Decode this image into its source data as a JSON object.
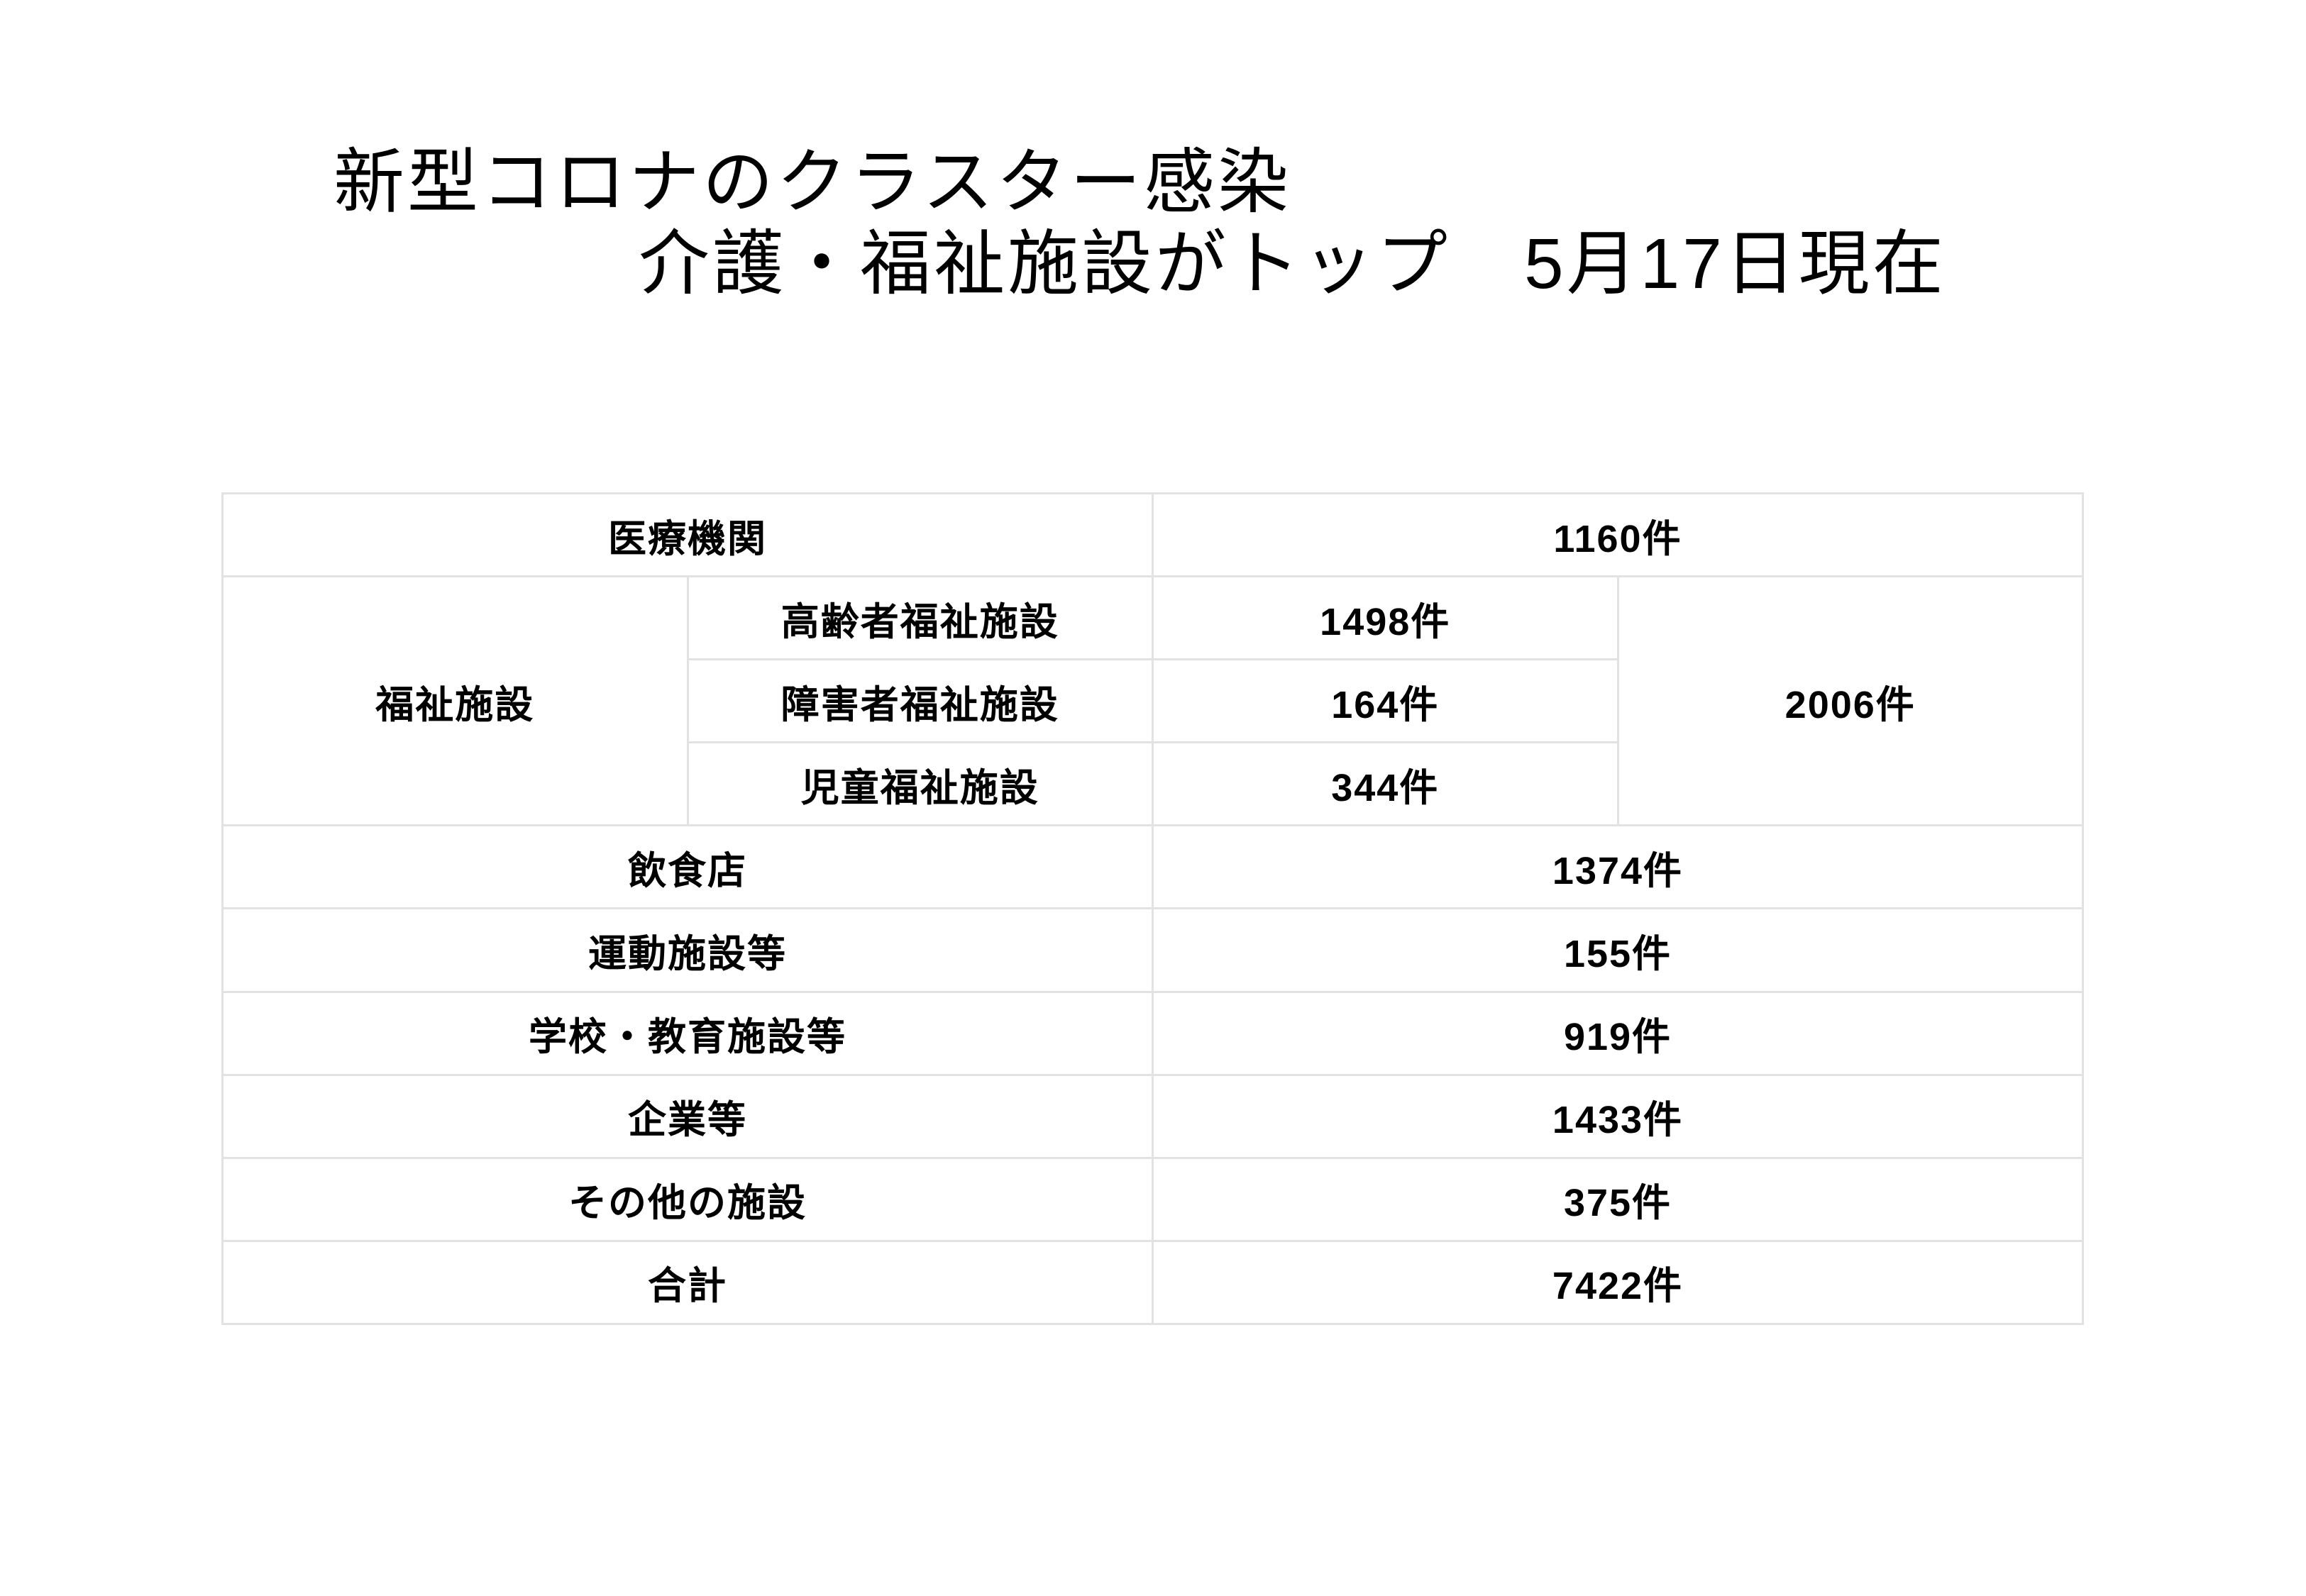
{
  "page": {
    "background": "#ffffff",
    "text_color": "#000000",
    "table_border_color": "#e2e2e2"
  },
  "title": {
    "line1": "新型コロナのクラスター感染",
    "line2": "介護・福祉施設がトップ　5月17日現在"
  },
  "table": {
    "row_medical": {
      "label": "医療機関",
      "value": "1160件"
    },
    "welfare_group": {
      "label": "福祉施設",
      "total": "2006件",
      "subrows": [
        {
          "label": "高齢者福祉施設",
          "value": "1498件"
        },
        {
          "label": "障害者福祉施設",
          "value": "164件"
        },
        {
          "label": "児童福祉施設",
          "value": "344件"
        }
      ]
    },
    "simple_rows": [
      {
        "label": "飲食店",
        "value": "1374件"
      },
      {
        "label": "運動施設等",
        "value": "155件"
      },
      {
        "label": "学校・教育施設等",
        "value": "919件"
      },
      {
        "label": "企業等",
        "value": "1433件"
      },
      {
        "label": "その他の施設",
        "value": "375件"
      },
      {
        "label": "合計",
        "value": "7422件"
      }
    ]
  }
}
